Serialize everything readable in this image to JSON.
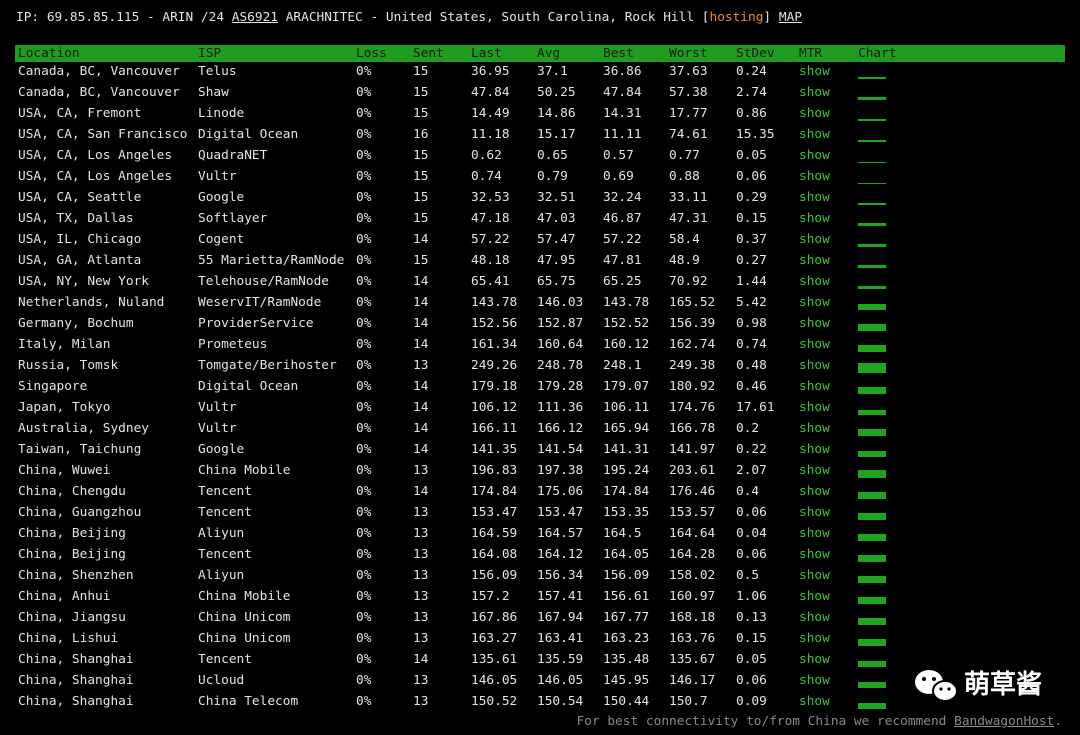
{
  "header": {
    "ip_info": "IP: 69.85.85.115 - ARIN /24",
    "asn": "AS6921",
    "org_location": "ARACHNITEC - United States, South Carolina, Rock Hill",
    "tag_open": "[",
    "tag": "hosting",
    "tag_close": "]",
    "map": "MAP"
  },
  "table": {
    "columns": [
      "Location",
      "ISP",
      "Loss",
      "Sent",
      "Last",
      "Avg",
      "Best",
      "Worst",
      "StDev",
      "MTR",
      "Chart"
    ],
    "rows": [
      [
        "Canada, BC, Vancouver",
        "Telus",
        "0%",
        15,
        36.95,
        37.1,
        36.86,
        37.63,
        0.24,
        "show"
      ],
      [
        "Canada, BC, Vancouver",
        "Shaw",
        "0%",
        15,
        47.84,
        50.25,
        47.84,
        57.38,
        2.74,
        "show"
      ],
      [
        "USA, CA, Fremont",
        "Linode",
        "0%",
        15,
        14.49,
        14.86,
        14.31,
        17.77,
        0.86,
        "show"
      ],
      [
        "USA, CA, San Francisco",
        "Digital Ocean",
        "0%",
        16,
        11.18,
        15.17,
        11.11,
        74.61,
        15.35,
        "show"
      ],
      [
        "USA, CA, Los Angeles",
        "QuadraNET",
        "0%",
        15,
        0.62,
        0.65,
        0.57,
        0.77,
        0.05,
        "show"
      ],
      [
        "USA, CA, Los Angeles",
        "Vultr",
        "0%",
        15,
        0.74,
        0.79,
        0.69,
        0.88,
        0.06,
        "show"
      ],
      [
        "USA, CA, Seattle",
        "Google",
        "0%",
        15,
        32.53,
        32.51,
        32.24,
        33.11,
        0.29,
        "show"
      ],
      [
        "USA, TX, Dallas",
        "Softlayer",
        "0%",
        15,
        47.18,
        47.03,
        46.87,
        47.31,
        0.15,
        "show"
      ],
      [
        "USA, IL, Chicago",
        "Cogent",
        "0%",
        14,
        57.22,
        57.47,
        57.22,
        58.4,
        0.37,
        "show"
      ],
      [
        "USA, GA, Atlanta",
        "55 Marietta/RamNode",
        "0%",
        15,
        48.18,
        47.95,
        47.81,
        48.9,
        0.27,
        "show"
      ],
      [
        "USA, NY, New York",
        "Telehouse/RamNode",
        "0%",
        14,
        65.41,
        65.75,
        65.25,
        70.92,
        1.44,
        "show"
      ],
      [
        "Netherlands, Nuland",
        "WeservIT/RamNode",
        "0%",
        14,
        143.78,
        146.03,
        143.78,
        165.52,
        5.42,
        "show"
      ],
      [
        "Germany, Bochum",
        "ProviderService",
        "0%",
        14,
        152.56,
        152.87,
        152.52,
        156.39,
        0.98,
        "show"
      ],
      [
        "Italy, Milan",
        "Prometeus",
        "0%",
        14,
        161.34,
        160.64,
        160.12,
        162.74,
        0.74,
        "show"
      ],
      [
        "Russia, Tomsk",
        "Tomgate/Berihoster",
        "0%",
        13,
        249.26,
        248.78,
        248.1,
        249.38,
        0.48,
        "show"
      ],
      [
        "Singapore",
        "Digital Ocean",
        "0%",
        14,
        179.18,
        179.28,
        179.07,
        180.92,
        0.46,
        "show"
      ],
      [
        "Japan, Tokyo",
        "Vultr",
        "0%",
        14,
        106.12,
        111.36,
        106.11,
        174.76,
        17.61,
        "show"
      ],
      [
        "Australia, Sydney",
        "Vultr",
        "0%",
        14,
        166.11,
        166.12,
        165.94,
        166.78,
        0.2,
        "show"
      ],
      [
        "Taiwan, Taichung",
        "Google",
        "0%",
        14,
        141.35,
        141.54,
        141.31,
        141.97,
        0.22,
        "show"
      ],
      [
        "China, Wuwei",
        "China Mobile",
        "0%",
        13,
        196.83,
        197.38,
        195.24,
        203.61,
        2.07,
        "show"
      ],
      [
        "China, Chengdu",
        "Tencent",
        "0%",
        14,
        174.84,
        175.06,
        174.84,
        176.46,
        0.4,
        "show"
      ],
      [
        "China, Guangzhou",
        "Tencent",
        "0%",
        13,
        153.47,
        153.47,
        153.35,
        153.57,
        0.06,
        "show"
      ],
      [
        "China, Beijing",
        "Aliyun",
        "0%",
        13,
        164.59,
        164.57,
        164.5,
        164.64,
        0.04,
        "show"
      ],
      [
        "China, Beijing",
        "Tencent",
        "0%",
        13,
        164.08,
        164.12,
        164.05,
        164.28,
        0.06,
        "show"
      ],
      [
        "China, Shenzhen",
        "Aliyun",
        "0%",
        13,
        156.09,
        156.34,
        156.09,
        158.02,
        0.5,
        "show"
      ],
      [
        "China, Anhui",
        "China Mobile",
        "0%",
        13,
        157.2,
        157.41,
        156.61,
        160.97,
        1.06,
        "show"
      ],
      [
        "China, Jiangsu",
        "China Unicom",
        "0%",
        13,
        167.86,
        167.94,
        167.77,
        168.18,
        0.13,
        "show"
      ],
      [
        "China, Lishui",
        "China Unicom",
        "0%",
        13,
        163.27,
        163.41,
        163.23,
        163.76,
        0.15,
        "show"
      ],
      [
        "China, Shanghai",
        "Tencent",
        "0%",
        14,
        135.61,
        135.59,
        135.48,
        135.67,
        0.05,
        "show"
      ],
      [
        "China, Shanghai",
        "Ucloud",
        "0%",
        13,
        146.05,
        146.05,
        145.95,
        146.17,
        0.06,
        "show"
      ],
      [
        "China, Shanghai",
        "China Telecom",
        "0%",
        13,
        150.52,
        150.54,
        150.44,
        150.7,
        0.09,
        "show"
      ]
    ]
  },
  "footer": {
    "text": "For best connectivity to/from China we recommend",
    "link": "BandwagonHost",
    "end": "."
  },
  "watermark": "萌草酱"
}
